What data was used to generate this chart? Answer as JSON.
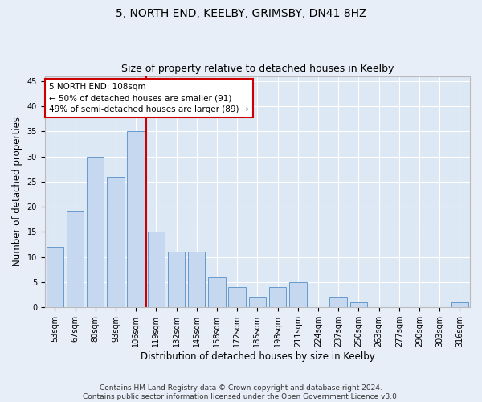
{
  "title": "5, NORTH END, KEELBY, GRIMSBY, DN41 8HZ",
  "subtitle": "Size of property relative to detached houses in Keelby",
  "xlabel": "Distribution of detached houses by size in Keelby",
  "ylabel": "Number of detached properties",
  "categories": [
    "53sqm",
    "67sqm",
    "80sqm",
    "93sqm",
    "106sqm",
    "119sqm",
    "132sqm",
    "145sqm",
    "158sqm",
    "172sqm",
    "185sqm",
    "198sqm",
    "211sqm",
    "224sqm",
    "237sqm",
    "250sqm",
    "263sqm",
    "277sqm",
    "290sqm",
    "303sqm",
    "316sqm"
  ],
  "values": [
    12,
    19,
    30,
    26,
    35,
    15,
    11,
    11,
    6,
    4,
    2,
    4,
    5,
    0,
    2,
    1,
    0,
    0,
    0,
    0,
    1
  ],
  "bar_color": "#c5d8f0",
  "bar_edge_color": "#6699cc",
  "vline_color": "#cc0000",
  "annotation_text": "5 NORTH END: 108sqm\n← 50% of detached houses are smaller (91)\n49% of semi-detached houses are larger (89) →",
  "annotation_box_color": "#cc0000",
  "ylim": [
    0,
    46
  ],
  "yticks": [
    0,
    5,
    10,
    15,
    20,
    25,
    30,
    35,
    40,
    45
  ],
  "footnote": "Contains HM Land Registry data © Crown copyright and database right 2024.\nContains public sector information licensed under the Open Government Licence v3.0.",
  "bg_color": "#dde8f5",
  "fig_bg_color": "#e8eef8",
  "grid_color": "#ffffff",
  "title_fontsize": 10,
  "subtitle_fontsize": 9,
  "axis_label_fontsize": 8.5,
  "tick_fontsize": 7,
  "footnote_fontsize": 6.5,
  "vline_bar_index": 4
}
